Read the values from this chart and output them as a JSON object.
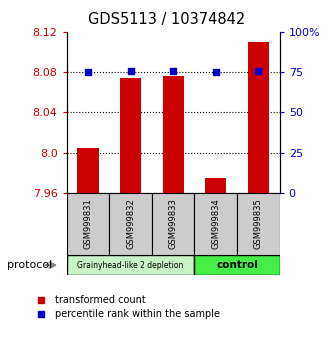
{
  "title": "GDS5113 / 10374842",
  "samples": [
    "GSM999831",
    "GSM999832",
    "GSM999833",
    "GSM999834",
    "GSM999835"
  ],
  "red_values": [
    8.005,
    8.074,
    8.076,
    7.975,
    8.11
  ],
  "blue_values": [
    75.0,
    76.0,
    76.0,
    75.0,
    76.0
  ],
  "ylim_left": [
    7.96,
    8.12
  ],
  "ylim_right": [
    0,
    100
  ],
  "yticks_left": [
    7.96,
    8.0,
    8.04,
    8.08,
    8.12
  ],
  "yticks_right": [
    0,
    25,
    50,
    75,
    100
  ],
  "ytick_labels_right": [
    "0",
    "25",
    "50",
    "75",
    "100%"
  ],
  "grid_lines": [
    8.0,
    8.04,
    8.08
  ],
  "group1_label": "Grainyhead-like 2 depletion",
  "group2_label": "control",
  "group1_color": "#c8f5c8",
  "group2_color": "#44ee44",
  "protocol_label": "protocol",
  "legend_red_label": "transformed count",
  "legend_blue_label": "percentile rank within the sample",
  "red_color": "#cc0000",
  "blue_color": "#0000cc",
  "bar_width": 0.5,
  "sample_box_color": "#cccccc",
  "fig_width": 3.33,
  "fig_height": 3.54,
  "dpi": 100
}
